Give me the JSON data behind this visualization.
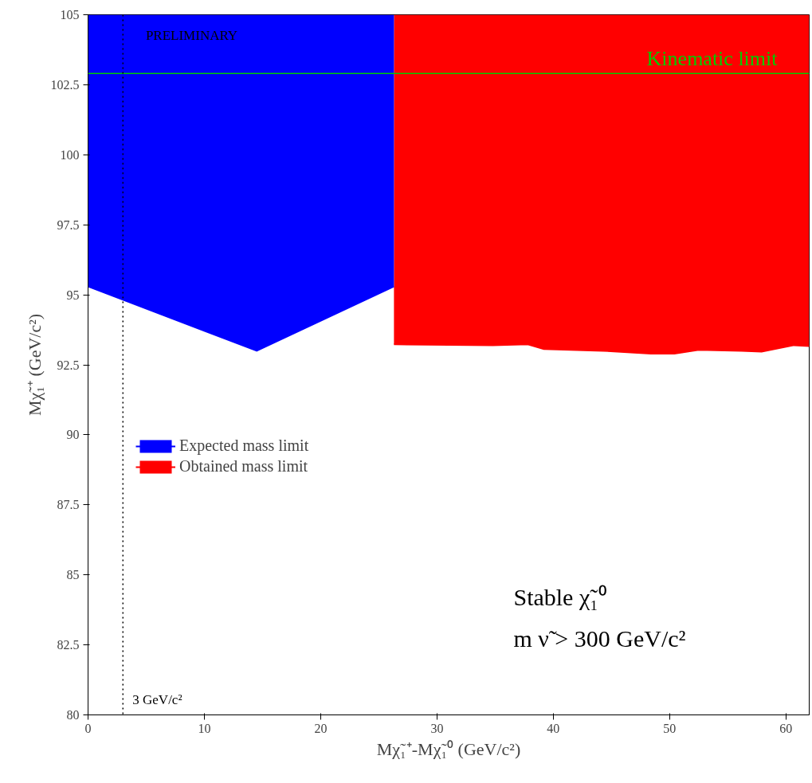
{
  "chart_data": {
    "type": "line",
    "xlabel": "Mχ̃₁⁺-Mχ̃₁⁰ (GeV/c²)",
    "ylabel": "Mχ̃₁⁺ (GeV/c²)",
    "xlim": [
      0,
      62
    ],
    "ylim": [
      80,
      105
    ],
    "xticks": [
      0,
      10,
      20,
      30,
      40,
      50,
      60
    ],
    "yticks": [
      80,
      82.5,
      85,
      87.5,
      90,
      92.5,
      95,
      97.5,
      100,
      102.5,
      105
    ],
    "grid": false,
    "legend": "left",
    "series": [
      {
        "name": "Expected mass limit",
        "color": "#0000ff",
        "x": [
          0,
          14.5,
          26.3
        ],
        "values": [
          95.3,
          93.0,
          95.3
        ],
        "lower": [
          95.3,
          93.0,
          95.3
        ],
        "upper": [
          105,
          105,
          105
        ]
      },
      {
        "name": "Obtained mass limit",
        "color": "#ff0000",
        "x": [
          26.3,
          34.8,
          37.8,
          39.2,
          44.3,
          48.4,
          50.4,
          52.5,
          56.2,
          57.9,
          60.7,
          62
        ],
        "values": [
          93.23,
          93.2,
          93.23,
          93.06,
          93.0,
          92.9,
          92.9,
          93.03,
          93.0,
          92.97,
          93.2,
          93.17
        ],
        "lower": [
          93.23,
          93.2,
          93.23,
          93.06,
          93.0,
          92.9,
          92.9,
          93.03,
          93.0,
          92.97,
          93.2,
          93.17
        ],
        "upper": [
          105,
          105,
          105,
          105,
          105,
          105,
          105,
          105,
          105,
          105,
          105,
          105
        ]
      }
    ],
    "ref_lines": [
      {
        "axis": "y",
        "value": 102.9,
        "label": "Kinematic limit",
        "color": "#00cc00",
        "line_style": "solid"
      },
      {
        "axis": "x",
        "value": 3,
        "label": "3 GeV/c²",
        "color": "#000000",
        "line_style": "dotted"
      }
    ],
    "annotations": [
      "PRELIMINARY",
      "Stable χ̃₁⁰",
      "m ν̃ > 300 GeV/c²"
    ]
  }
}
